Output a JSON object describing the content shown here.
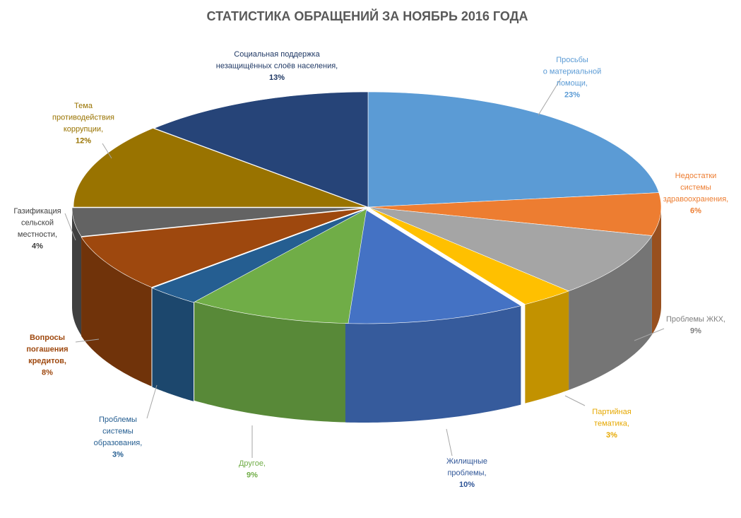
{
  "chart_data": {
    "type": "pie",
    "title": "СТАТИСТИКА ОБРАЩЕНИЙ ЗА НОЯБРЬ 2016 ГОДА",
    "slices": [
      {
        "lines": [
          "Просьбы",
          "о материальной",
          "помощи,"
        ],
        "value_label": "23%",
        "value": 23,
        "color": "#5B9BD5",
        "label_color": "#5B9BD5"
      },
      {
        "lines": [
          "Недостатки",
          "системы",
          "здравоохранения,"
        ],
        "value_label": "6%",
        "value": 6,
        "color": "#ED7D31",
        "label_color": "#ED7D31"
      },
      {
        "lines": [
          "Проблемы ЖКХ,"
        ],
        "value_label": "9%",
        "value": 9,
        "color": "#A5A5A5",
        "label_color": "#7F7F7F"
      },
      {
        "lines": [
          "Партийная",
          "тематика,"
        ],
        "value_label": "3%",
        "value": 3,
        "color": "#FFC000",
        "label_color": "#E6A800"
      },
      {
        "lines": [
          "Жилищные",
          "проблемы,"
        ],
        "value_label": "10%",
        "value": 10,
        "color": "#4472C4",
        "label_color": "#2F5597"
      },
      {
        "lines": [
          "Другое,"
        ],
        "value_label": "9%",
        "value": 9,
        "color": "#70AD47",
        "label_color": "#70AD47"
      },
      {
        "lines": [
          "Проблемы",
          "системы",
          "образования,"
        ],
        "value_label": "3%",
        "value": 3,
        "color": "#255E91",
        "label_color": "#255E91"
      },
      {
        "lines": [
          "Вопросы",
          "погашения",
          "кредитов,"
        ],
        "value_label": "8%",
        "value": 8,
        "color": "#9E480E",
        "label_color": "#9E480E"
      },
      {
        "lines": [
          "Газификация",
          "сельской",
          "местности,"
        ],
        "value_label": "4%",
        "value": 4,
        "color": "#636363",
        "label_color": "#404040"
      },
      {
        "lines": [
          "Тема",
          "противодействия",
          "коррупции,"
        ],
        "value_label": "12%",
        "value": 12,
        "color": "#997300",
        "label_color": "#997300"
      },
      {
        "lines": [
          "Социальная поддержка",
          "незащищённых слоёв населения,"
        ],
        "value_label": "13%",
        "value": 13,
        "color": "#264478",
        "label_color": "#1F3864"
      }
    ],
    "legend": "none",
    "style": "3d-exploded-ellipse"
  }
}
